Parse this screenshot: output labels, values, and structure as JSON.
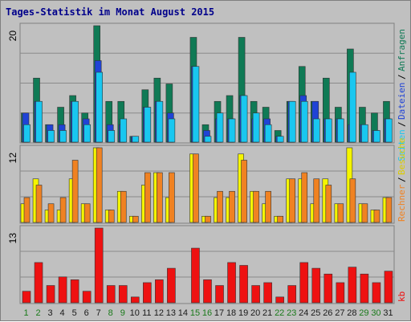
{
  "title": "Tages-Statistik im Monat August 2015",
  "colors": {
    "background": "#c0c0c0",
    "anfragen": "#0f7a55",
    "dateien": "#1f43d6",
    "seiten": "#19c7f0",
    "besuche": "#f5f500",
    "rechner": "#f08222",
    "kb": "#ee1111",
    "grid": "#808080",
    "weekday_label": "#1a7a1a",
    "weekend_label": "#1a7a1a",
    "day_label": "#2e8b57"
  },
  "chart_data": [
    {
      "type": "bar",
      "panel": "top",
      "ymax_label": "20",
      "ylim": [
        0,
        20
      ],
      "x": [
        1,
        2,
        3,
        4,
        5,
        6,
        7,
        8,
        9,
        10,
        11,
        12,
        13,
        14,
        15,
        16,
        17,
        18,
        19,
        20,
        21,
        22,
        23,
        24,
        25,
        26,
        27,
        28,
        29,
        30,
        31
      ],
      "series": [
        {
          "name": "Anfragen",
          "values": [
            5,
            11,
            3,
            6,
            8,
            5,
            20,
            7,
            7,
            1,
            9,
            11,
            10,
            0,
            18,
            3,
            7,
            8,
            18,
            7,
            6,
            2,
            7,
            13,
            7,
            11,
            6,
            16,
            6,
            5,
            7
          ]
        },
        {
          "name": "Dateien",
          "values": [
            5,
            7,
            3,
            3,
            7,
            4,
            14,
            3,
            3,
            1,
            6,
            7,
            5,
            0,
            13,
            2,
            4,
            4,
            8,
            4,
            4,
            1,
            7,
            8,
            7,
            4,
            4,
            3,
            3,
            2,
            4
          ]
        },
        {
          "name": "Seiten",
          "values": [
            3,
            7,
            2,
            2,
            7,
            3,
            12,
            2,
            4,
            1,
            6,
            7,
            4,
            0,
            13,
            1,
            5,
            4,
            8,
            5,
            3,
            1,
            7,
            7,
            4,
            4,
            4,
            12,
            3,
            2,
            4
          ]
        }
      ]
    },
    {
      "type": "bar",
      "panel": "middle",
      "ymax_label": "12",
      "ylim": [
        0,
        12
      ],
      "x": [
        1,
        2,
        3,
        4,
        5,
        6,
        7,
        8,
        9,
        10,
        11,
        12,
        13,
        14,
        15,
        16,
        17,
        18,
        19,
        20,
        21,
        22,
        23,
        24,
        25,
        26,
        27,
        28,
        29,
        30,
        31
      ],
      "series": [
        {
          "name": "Besuche",
          "values": [
            3,
            7,
            2,
            2,
            7,
            3,
            12,
            2,
            5,
            1,
            6,
            8,
            4,
            0,
            11,
            1,
            4,
            4,
            11,
            5,
            3,
            1,
            7,
            7,
            3,
            7,
            3,
            12,
            3,
            2,
            4
          ]
        },
        {
          "name": "Rechner",
          "values": [
            4,
            6,
            3,
            4,
            10,
            3,
            12,
            2,
            5,
            1,
            8,
            8,
            8,
            0,
            11,
            1,
            5,
            5,
            10,
            5,
            5,
            1,
            7,
            8,
            7,
            6,
            3,
            7,
            3,
            2,
            4
          ]
        }
      ]
    },
    {
      "type": "bar",
      "panel": "bottom",
      "ymax_label": "13",
      "ylim": [
        0,
        13
      ],
      "x": [
        1,
        2,
        3,
        4,
        5,
        6,
        7,
        8,
        9,
        10,
        11,
        12,
        13,
        14,
        15,
        16,
        17,
        18,
        19,
        20,
        21,
        22,
        23,
        24,
        25,
        26,
        27,
        28,
        29,
        30,
        31
      ],
      "series": [
        {
          "name": "kb",
          "values": [
            2,
            7,
            3,
            4.5,
            4,
            2,
            13,
            3,
            3,
            1,
            3.5,
            4,
            6,
            0,
            9.5,
            4,
            3,
            7,
            6.5,
            3,
            3.5,
            1,
            3,
            7,
            6,
            5,
            3.5,
            6.2,
            5,
            3.5,
            5.5
          ]
        }
      ]
    }
  ],
  "right_labels": {
    "anfragen": "Anfragen",
    "dateien": "Dateien",
    "seiten": "Seiten",
    "besuche": "Besuche",
    "rechner": "Rechner",
    "kb": "kb",
    "slash": "/"
  },
  "day_labels": [
    "1",
    "2",
    "3",
    "4",
    "5",
    "6",
    "7",
    "8",
    "9",
    "10",
    "11",
    "12",
    "13",
    "14",
    "15",
    "16",
    "17",
    "18",
    "19",
    "20",
    "21",
    "22",
    "23",
    "24",
    "25",
    "26",
    "27",
    "28",
    "29",
    "30",
    "31"
  ],
  "weekend_days": [
    1,
    2,
    8,
    9,
    15,
    16,
    22,
    23,
    29,
    30
  ]
}
